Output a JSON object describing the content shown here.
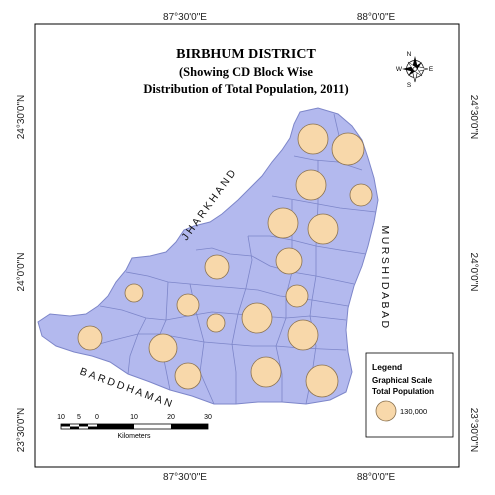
{
  "title": {
    "line1": "BIRBHUM DISTRICT",
    "line2": "(Showing CD Block Wise",
    "line3": "Distribution of Total Population, 2011)"
  },
  "graticule": {
    "top": [
      "87°30'0\"E",
      "88°0'0\"E"
    ],
    "bottom": [
      "87°30'0\"E",
      "88°0'0\"E"
    ],
    "left": [
      "24°30'0\"N",
      "24°0'0\"N",
      "23°30'0\"N"
    ],
    "right": [
      "24°30'0\"N",
      "24°0'0\"N",
      "23°30'0\"N"
    ]
  },
  "neighbors": {
    "north_west": "JHARKHAND",
    "east": "MURSHIDABAD",
    "south": "BARDDHAMAN"
  },
  "compass": {
    "n": "N",
    "s": "S",
    "e": "E",
    "w": "W"
  },
  "legend": {
    "title": "Legend",
    "subtitle_line1": "Graphical Scale",
    "subtitle_line2": "Total Population",
    "symbol_value": "130,000"
  },
  "scale_bar": {
    "labels": [
      "10",
      "5",
      "0",
      "10",
      "20",
      "30"
    ],
    "unit": "Kilometers"
  },
  "colors": {
    "district_fill": "#b3b9ee",
    "district_stroke": "#7d86c9",
    "bubble_fill": "#f8d8aa",
    "bubble_stroke": "#8a7250"
  }
}
